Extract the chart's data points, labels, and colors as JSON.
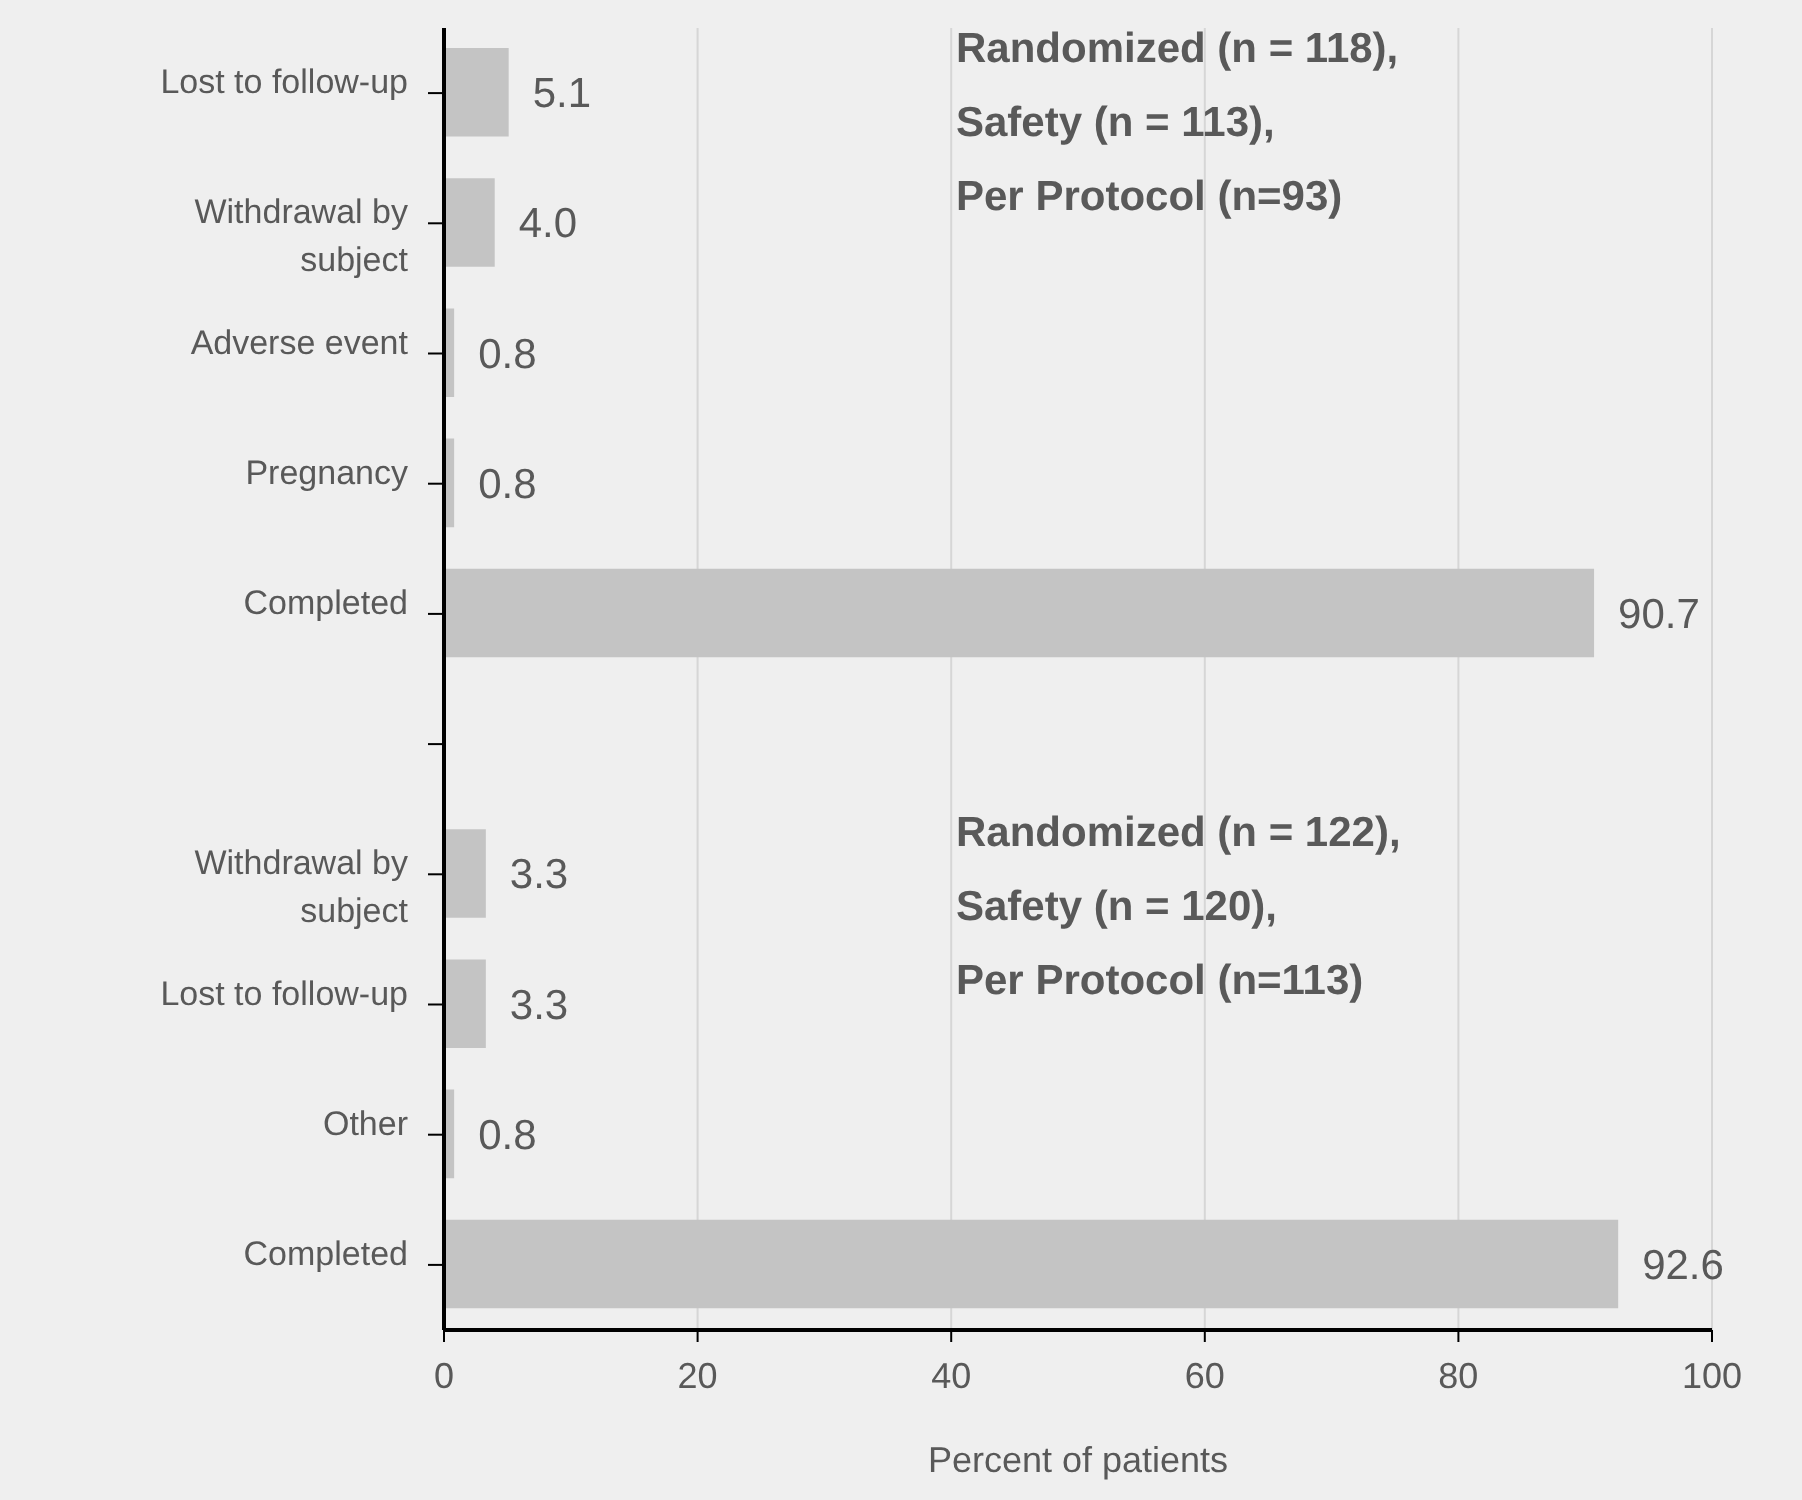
{
  "chart_data": {
    "type": "bar",
    "orientation": "horizontal",
    "xlabel": "Percent of patients",
    "categories": [
      "Lost to follow-up",
      "Withdrawal by subject",
      "Adverse event",
      "Pregnancy",
      "Completed",
      null,
      "Withdrawal by subject",
      "Lost to follow-up",
      "Other",
      "Completed"
    ],
    "values": [
      5.1,
      4.0,
      0.8,
      0.8,
      90.7,
      null,
      3.3,
      3.3,
      0.8,
      92.6
    ],
    "value_labels": [
      "5.1",
      "4.0",
      "0.8",
      "0.8",
      "90.7",
      null,
      "3.3",
      "3.3",
      "0.8",
      "92.6"
    ],
    "color": "#c4c4c4",
    "xlim": [
      0,
      100
    ],
    "xticks": [
      0,
      20,
      40,
      60,
      80,
      100
    ],
    "grid": "x",
    "annotations": [
      "Randomized (n = 118),\nSafety (n = 113),\nPer Protocol (n=93)",
      "Randomized (n = 122),\nSafety (n = 120),\nPer Protocol (n=113)"
    ]
  }
}
